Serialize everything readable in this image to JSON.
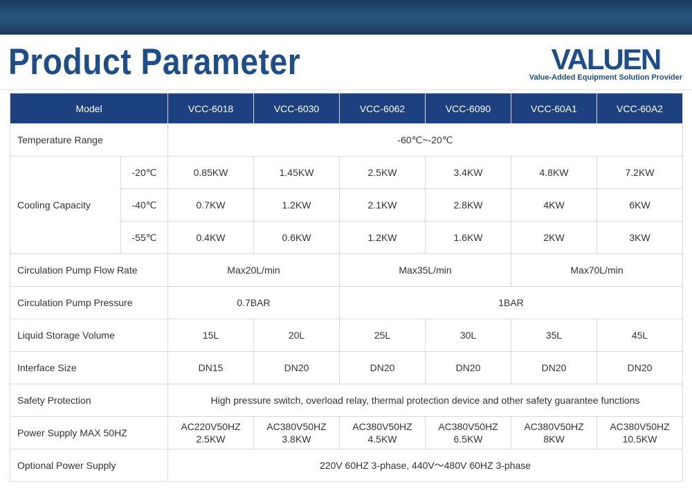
{
  "header": {
    "title": "Product Parameter",
    "logo_main": "VALUEN",
    "logo_tagline": "Value-Added Equipment Solution Provider"
  },
  "colors": {
    "header_bg": "#1d4080",
    "header_text": "#ffffff",
    "brand_blue": "#1d4e89",
    "border": "#d9d9d9",
    "body_text": "#333333",
    "top_band": "#1a3a5c"
  },
  "table": {
    "model_label": "Model",
    "models": [
      "VCC-6018",
      "VCC-6030",
      "VCC-6062",
      "VCC-6090",
      "VCC-60A1",
      "VCC-60A2"
    ],
    "temp_range": {
      "label": "Temperature Range",
      "value": "-60℃~-20℃"
    },
    "cooling": {
      "label": "Cooling Capacity",
      "rows": [
        {
          "temp": "-20℃",
          "vals": [
            "0.85KW",
            "1.45KW",
            "2.5KW",
            "3.4KW",
            "4.8KW",
            "7.2KW"
          ]
        },
        {
          "temp": "-40℃",
          "vals": [
            "0.7KW",
            "1.2KW",
            "2.1KW",
            "2.8KW",
            "4KW",
            "6KW"
          ]
        },
        {
          "temp": "-55℃",
          "vals": [
            "0.4KW",
            "0.6KW",
            "1.2KW",
            "1.6KW",
            "2KW",
            "3KW"
          ]
        }
      ]
    },
    "flow_rate": {
      "label": "Circulation Pump Flow Rate",
      "vals": [
        "Max20L/min",
        "Max35L/min",
        "Max70L/min"
      ]
    },
    "pressure": {
      "label": "Circulation Pump Pressure",
      "vals": [
        "0.7BAR",
        "1BAR"
      ]
    },
    "storage": {
      "label": "Liquid Storage Volume",
      "vals": [
        "15L",
        "20L",
        "25L",
        "30L",
        "35L",
        "45L"
      ]
    },
    "interface": {
      "label": "Interface Size",
      "vals": [
        "DN15",
        "DN20",
        "DN20",
        "DN20",
        "DN20",
        "DN20"
      ]
    },
    "safety": {
      "label": "Safety Protection",
      "value": "High pressure switch, overload relay, thermal protection device and other safety guarantee functions"
    },
    "power": {
      "label": "Power Supply MAX 50HZ",
      "vals": [
        [
          "AC220V50HZ",
          "2.5KW"
        ],
        [
          "AC380V50HZ",
          "3.8KW"
        ],
        [
          "AC380V50HZ",
          "4.5KW"
        ],
        [
          "AC380V50HZ",
          "6.5KW"
        ],
        [
          "AC380V50HZ",
          "8KW"
        ],
        [
          "AC380V50HZ",
          "10.5KW"
        ]
      ]
    },
    "optional": {
      "label": "Optional Power Supply",
      "value": "220V 60HZ 3-phase, 440V～480V 60HZ 3-phase"
    }
  }
}
